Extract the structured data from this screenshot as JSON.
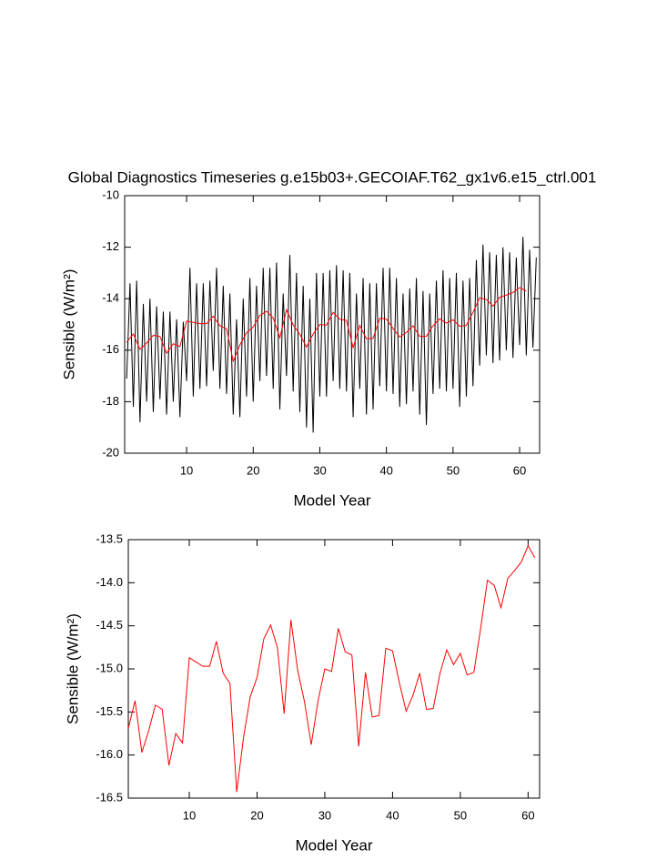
{
  "chart_data": [
    {
      "type": "line",
      "title": "Global Diagnostics Timeseries g.e15b03+.GECOIAF.T62_gx1v6.e15_ctrl.001",
      "x_label": "Model Year",
      "y_label": "Sensible (W/m²)",
      "xlim": [
        0.7,
        63
      ],
      "xticks": [
        10,
        20,
        30,
        40,
        50,
        60
      ],
      "ylim": [
        -20,
        -10
      ],
      "yticks": [
        -20,
        -18,
        -16,
        -14,
        -12,
        -10
      ],
      "series": [
        {
          "color": "#000000",
          "x": [
            1,
            1.5,
            2,
            2.5,
            3,
            3.5,
            4,
            4.5,
            5,
            5.5,
            6,
            6.5,
            7,
            7.5,
            8,
            8.5,
            9,
            9.5,
            10,
            10.5,
            11,
            11.5,
            12,
            12.5,
            13,
            13.5,
            14,
            14.5,
            15,
            15.5,
            16,
            16.5,
            17,
            17.5,
            18,
            18.5,
            19,
            19.5,
            20,
            20.5,
            21,
            21.5,
            22,
            22.5,
            23,
            23.5,
            24,
            24.5,
            25,
            25.5,
            26,
            26.5,
            27,
            27.5,
            28,
            28.5,
            29,
            29.5,
            30,
            30.5,
            31,
            31.5,
            32,
            32.5,
            33,
            33.5,
            34,
            34.5,
            35,
            35.5,
            36,
            36.5,
            37,
            37.5,
            38,
            38.5,
            39,
            39.5,
            40,
            40.5,
            41,
            41.5,
            42,
            42.5,
            43,
            43.5,
            44,
            44.5,
            45,
            45.5,
            46,
            46.5,
            47,
            47.5,
            48,
            48.5,
            49,
            49.5,
            50,
            50.5,
            51,
            51.5,
            52,
            52.5,
            53,
            53.5,
            54,
            54.5,
            55,
            55.5,
            56,
            56.5,
            57,
            57.5,
            58,
            58.5,
            59,
            59.5,
            60,
            60.5,
            61,
            61.5,
            62,
            62.5
          ],
          "values": [
            -17.1,
            -13.4,
            -18.2,
            -13.3,
            -18.8,
            -14.2,
            -18.0,
            -14.0,
            -18.4,
            -14.3,
            -17.9,
            -14.5,
            -18.5,
            -14.5,
            -18.0,
            -14.8,
            -18.6,
            -14.9,
            -17.2,
            -12.8,
            -17.8,
            -13.4,
            -17.5,
            -13.4,
            -17.4,
            -13.3,
            -16.8,
            -12.8,
            -17.5,
            -13.5,
            -17.7,
            -13.8,
            -18.5,
            -14.8,
            -18.6,
            -14.0,
            -17.8,
            -13.2,
            -18.0,
            -13.5,
            -17.2,
            -12.8,
            -17.0,
            -12.8,
            -17.5,
            -12.6,
            -18.3,
            -13.8,
            -17.0,
            -12.3,
            -17.6,
            -13.0,
            -18.4,
            -13.5,
            -19.0,
            -14.0,
            -19.2,
            -13.0,
            -17.8,
            -13.0,
            -17.8,
            -12.9,
            -17.2,
            -12.7,
            -17.5,
            -12.9,
            -17.6,
            -13.0,
            -18.6,
            -13.8,
            -17.5,
            -13.2,
            -18.5,
            -13.4,
            -18.3,
            -13.4,
            -17.4,
            -12.8,
            -17.6,
            -12.8,
            -17.7,
            -13.2,
            -18.2,
            -13.8,
            -18.1,
            -13.6,
            -17.6,
            -13.2,
            -18.5,
            -13.7,
            -18.9,
            -13.8,
            -17.7,
            -13.3,
            -17.5,
            -12.9,
            -17.6,
            -13.2,
            -17.5,
            -13.0,
            -18.2,
            -13.3,
            -17.8,
            -13.2,
            -17.4,
            -12.5,
            -16.6,
            -11.9,
            -16.2,
            -12.2,
            -16.5,
            -12.3,
            -16.4,
            -12.0,
            -16.0,
            -12.2,
            -16.3,
            -12.4,
            -15.8,
            -11.6,
            -16.2,
            -12.1,
            -15.9,
            -12.4
          ]
        },
        {
          "color": "#ff0000",
          "x": [
            1,
            2,
            3,
            4,
            5,
            6,
            7,
            8,
            9,
            10,
            11,
            12,
            13,
            14,
            15,
            16,
            17,
            18,
            19,
            20,
            21,
            22,
            23,
            24,
            25,
            26,
            27,
            28,
            29,
            30,
            31,
            32,
            33,
            34,
            35,
            36,
            37,
            38,
            39,
            40,
            41,
            42,
            43,
            44,
            45,
            46,
            47,
            48,
            49,
            50,
            51,
            52,
            53,
            54,
            55,
            56,
            57,
            58,
            59,
            60,
            61
          ],
          "values": [
            -15.69,
            -15.37,
            -15.97,
            -15.72,
            -15.42,
            -15.47,
            -16.12,
            -15.75,
            -15.86,
            -14.87,
            -14.92,
            -14.97,
            -14.97,
            -14.68,
            -15.05,
            -15.17,
            -16.43,
            -15.8,
            -15.32,
            -15.1,
            -14.65,
            -14.49,
            -14.75,
            -15.52,
            -14.43,
            -15.02,
            -15.38,
            -15.88,
            -15.37,
            -15.0,
            -15.03,
            -14.53,
            -14.8,
            -14.84,
            -15.9,
            -15.04,
            -15.56,
            -15.54,
            -14.76,
            -14.79,
            -15.16,
            -15.49,
            -15.31,
            -15.05,
            -15.47,
            -15.46,
            -15.05,
            -14.78,
            -14.95,
            -14.82,
            -15.07,
            -15.04,
            -14.53,
            -13.97,
            -14.03,
            -14.29,
            -13.95,
            -13.86,
            -13.76,
            -13.57,
            -13.71
          ]
        }
      ]
    },
    {
      "type": "line",
      "x_label": "Model Year",
      "y_label": "Sensible (W/m²)",
      "xlim": [
        1,
        61.7
      ],
      "xticks": [
        10,
        20,
        30,
        40,
        50,
        60
      ],
      "ylim": [
        -16.5,
        -13.5
      ],
      "yticks": [
        -16.5,
        {
          "value": -16,
          "label": "-16.0"
        },
        -15.5,
        {
          "value": -15,
          "label": "-15.0"
        },
        -14.5,
        {
          "value": -14,
          "label": "-14.0"
        },
        -13.5
      ],
      "series": [
        {
          "color": "#ff0000",
          "x": [
            1,
            2,
            3,
            4,
            5,
            6,
            7,
            8,
            9,
            10,
            11,
            12,
            13,
            14,
            15,
            16,
            17,
            18,
            19,
            20,
            21,
            22,
            23,
            24,
            25,
            26,
            27,
            28,
            29,
            30,
            31,
            32,
            33,
            34,
            35,
            36,
            37,
            38,
            39,
            40,
            41,
            42,
            43,
            44,
            45,
            46,
            47,
            48,
            49,
            50,
            51,
            52,
            53,
            54,
            55,
            56,
            57,
            58,
            59,
            60,
            61
          ],
          "values": [
            -15.69,
            -15.37,
            -15.97,
            -15.72,
            -15.42,
            -15.47,
            -16.12,
            -15.75,
            -15.86,
            -14.87,
            -14.92,
            -14.97,
            -14.97,
            -14.68,
            -15.05,
            -15.17,
            -16.43,
            -15.8,
            -15.32,
            -15.1,
            -14.65,
            -14.49,
            -14.75,
            -15.52,
            -14.43,
            -15.02,
            -15.38,
            -15.88,
            -15.37,
            -15.0,
            -15.03,
            -14.53,
            -14.8,
            -14.84,
            -15.9,
            -15.04,
            -15.56,
            -15.54,
            -14.76,
            -14.79,
            -15.16,
            -15.49,
            -15.31,
            -15.05,
            -15.47,
            -15.46,
            -15.05,
            -14.78,
            -14.95,
            -14.82,
            -15.07,
            -15.04,
            -14.53,
            -13.97,
            -14.03,
            -14.29,
            -13.95,
            -13.86,
            -13.76,
            -13.57,
            -13.71
          ]
        }
      ]
    }
  ]
}
